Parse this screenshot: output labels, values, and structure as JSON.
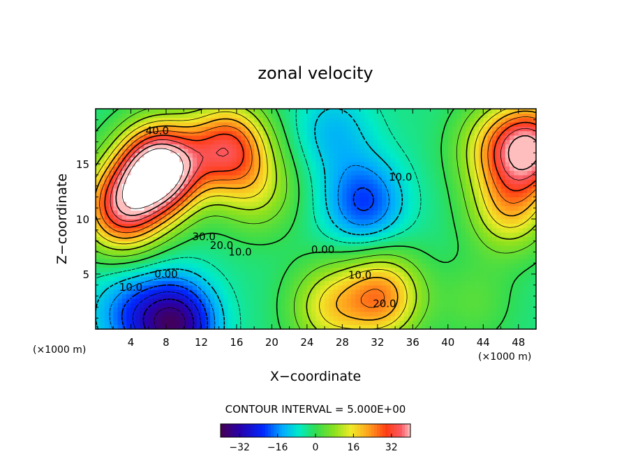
{
  "chart_data": {
    "type": "heatmap",
    "title": "zonal velocity",
    "xlabel": "X−coordinate",
    "ylabel": "Z−coordinate",
    "x_unit": "(×1000 m)",
    "xlim": [
      0,
      50
    ],
    "ylim": [
      0,
      20
    ],
    "x_ticks": [
      4,
      8,
      12,
      16,
      20,
      24,
      28,
      32,
      36,
      40,
      44,
      48
    ],
    "y_ticks": [
      5,
      10,
      15
    ],
    "contour_interval_text": "CONTOUR INTERVAL = 5.000E+00",
    "contour_interval": 5,
    "colorbar": {
      "range": [
        -40,
        40
      ],
      "ticks": [
        -32,
        -16,
        0,
        16,
        32
      ],
      "tick_labels": [
        "−32",
        "−16",
        "0",
        "16",
        "32"
      ]
    },
    "contour_labels": [
      {
        "x": 7.0,
        "y": 18.0,
        "text": "40.0"
      },
      {
        "x": 12.3,
        "y": 8.4,
        "text": "30.0"
      },
      {
        "x": 14.3,
        "y": 7.6,
        "text": "20.0"
      },
      {
        "x": 16.4,
        "y": 7.0,
        "text": "10.0"
      },
      {
        "x": 8.0,
        "y": 5.0,
        "text": "0.00"
      },
      {
        "x": 4.0,
        "y": 3.8,
        "text": "10.0"
      },
      {
        "x": 25.8,
        "y": 7.2,
        "text": "0.00"
      },
      {
        "x": 34.6,
        "y": 13.8,
        "text": "10.0"
      },
      {
        "x": 30.0,
        "y": 4.9,
        "text": "10.0"
      },
      {
        "x": 32.8,
        "y": 2.3,
        "text": "20.0"
      }
    ],
    "centers": [
      {
        "x": 7.3,
        "z": 14.5,
        "value": 52
      },
      {
        "x": 15.0,
        "z": 16.5,
        "value": 30
      },
      {
        "x": 3.0,
        "z": 11.0,
        "value": 32
      },
      {
        "x": 9.0,
        "z": 0.5,
        "value": -36
      },
      {
        "x": 3.5,
        "z": 1.5,
        "value": -15
      },
      {
        "x": 30.5,
        "z": 11.5,
        "value": -21
      },
      {
        "x": 27.0,
        "z": 18.0,
        "value": -12
      },
      {
        "x": 32.5,
        "z": 3.0,
        "value": 23
      },
      {
        "x": 26.5,
        "z": 2.0,
        "value": 14
      },
      {
        "x": 49.5,
        "z": 16.5,
        "value": 36
      },
      {
        "x": 47.0,
        "z": 11.0,
        "value": 17
      },
      {
        "x": 45.0,
        "z": 16.5,
        "value": 11
      },
      {
        "x": 43.0,
        "z": 2.5,
        "value": 3
      },
      {
        "x": 18.5,
        "z": 12.5,
        "value": 9
      }
    ],
    "background_value": -3,
    "grid": false,
    "legend": "none"
  }
}
